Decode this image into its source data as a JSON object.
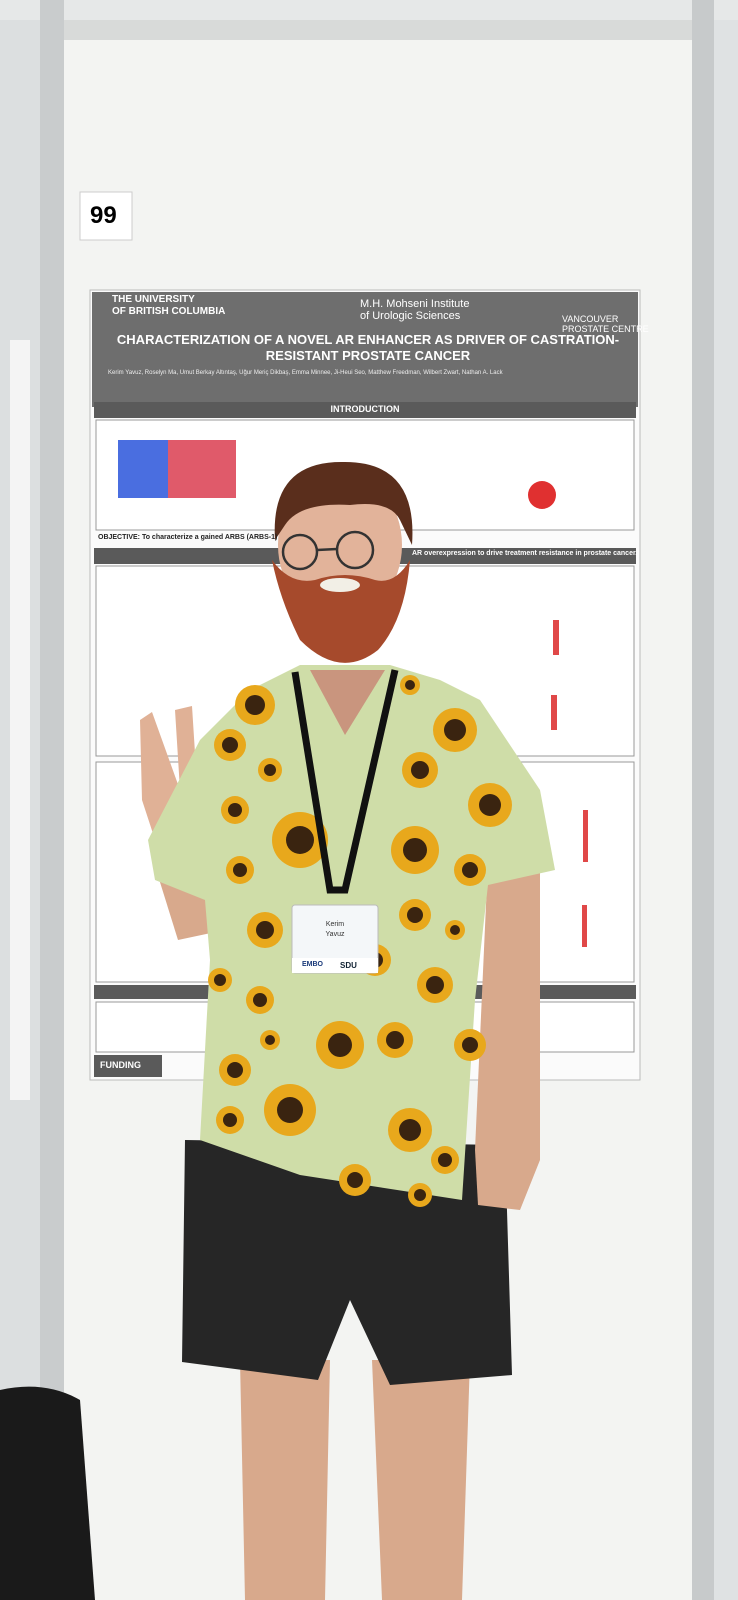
{
  "board_number": "99",
  "poster": {
    "logo_left": [
      "THE UNIVERSITY",
      "OF BRITISH COLUMBIA"
    ],
    "logo_center": [
      "M.H. Mohseni Institute",
      "of Urologic Sciences"
    ],
    "logo_right": [
      "VANCOUVER",
      "PROSTATE CENTRE"
    ],
    "title": [
      "CHARACTERIZATION OF A NOVEL AR ENHANCER AS DRIVER OF CASTRATION-",
      "RESISTANT PROSTATE CANCER"
    ],
    "authors": "Kerim Yavuz, Roselyn Ma, Umut Berkay Altıntaş, Uğur Meriç Dikbaş, Emma Minnee, Ji-Heui Seo, Matthew Freedman, Wilbert Zwart, Nathan A. Lack",
    "introduction_heading": "INTRODUCTION",
    "objective": "OBJECTIVE: To characterize a gained ARBS (ARBS-1)",
    "objective_end": "AR overexpression to drive treatment resistance in prostate cancer.",
    "funding": "FUNDING"
  },
  "badge": {
    "name": "Kerim",
    "surname": "Yavuz",
    "logo_left": "EMBO",
    "logo_right": "SDU"
  }
}
